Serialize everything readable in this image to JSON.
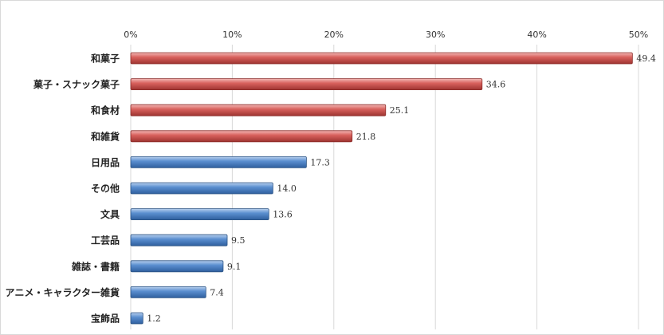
{
  "chart_data": {
    "type": "bar",
    "orientation": "horizontal",
    "categories": [
      "和菓子",
      "菓子・スナック菓子",
      "和食材",
      "和雑貨",
      "日用品",
      "その他",
      "文具",
      "工芸品",
      "雑誌・書籍",
      "アニメ・キャラクター雑貨",
      "宝飾品"
    ],
    "values": [
      49.4,
      34.6,
      25.1,
      21.8,
      17.3,
      14.0,
      13.6,
      9.5,
      9.1,
      7.4,
      1.2
    ],
    "value_labels": [
      "49.4",
      "34.6",
      "25.1",
      "21.8",
      "17.3",
      "14.0",
      "13.6",
      "9.5",
      "9.1",
      "7.4",
      "1.2"
    ],
    "xlim": [
      0,
      50
    ],
    "x_ticks": [
      "0%",
      "10%",
      "20%",
      "30%",
      "40%",
      "50%"
    ],
    "x_axis_position": "top",
    "grid": true,
    "legend": "none",
    "colors": {
      "red": "#c0504d",
      "blue": "#4f81bd",
      "gridline": "#d9d9d9"
    },
    "bar_colors": [
      "red",
      "red",
      "red",
      "red",
      "blue",
      "blue",
      "blue",
      "blue",
      "blue",
      "blue",
      "blue"
    ]
  }
}
